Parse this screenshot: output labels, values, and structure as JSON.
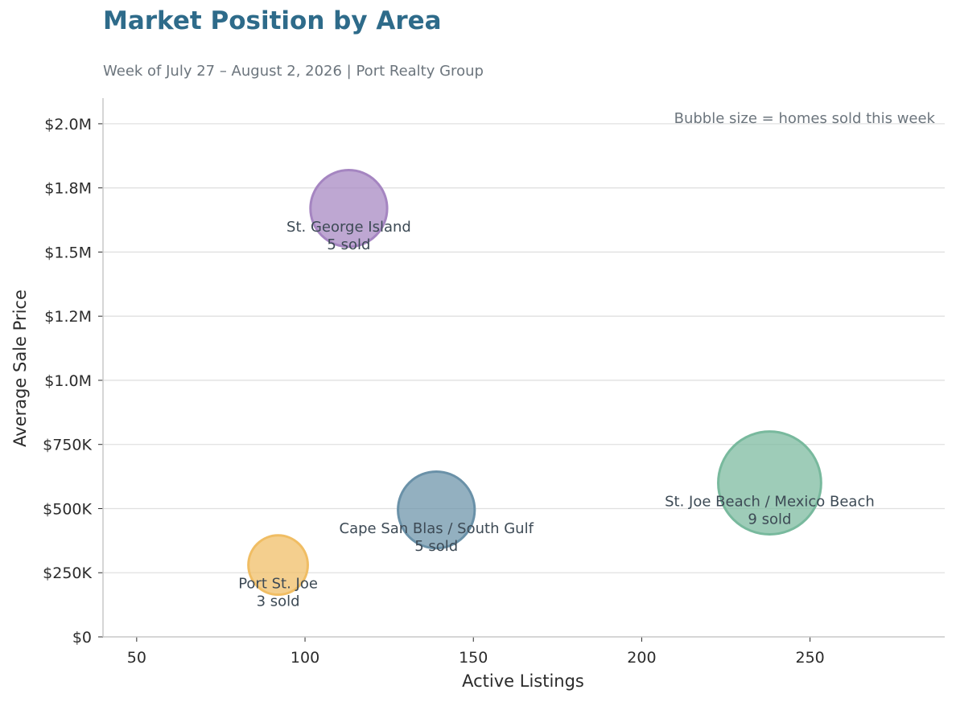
{
  "chart_data": {
    "type": "scatter",
    "title": "Market Position by Area",
    "subtitle": "Week of July 27 – August 2, 2026  |  Port Realty Group",
    "xlabel": "Active Listings",
    "ylabel": "Average Sale Price",
    "xlim": [
      40,
      290
    ],
    "ylim": [
      0,
      2100000
    ],
    "x_ticks": [
      {
        "value": 50,
        "label": "50"
      },
      {
        "value": 100,
        "label": "100"
      },
      {
        "value": 150,
        "label": "150"
      },
      {
        "value": 200,
        "label": "200"
      },
      {
        "value": 250,
        "label": "250"
      }
    ],
    "y_ticks": [
      {
        "value": 0,
        "label": "$0"
      },
      {
        "value": 250000,
        "label": "$250K"
      },
      {
        "value": 500000,
        "label": "$500K"
      },
      {
        "value": 750000,
        "label": "$750K"
      },
      {
        "value": 1000000,
        "label": "$1.0M"
      },
      {
        "value": 1250000,
        "label": "$1.2M"
      },
      {
        "value": 1500000,
        "label": "$1.5M"
      },
      {
        "value": 1750000,
        "label": "$1.8M"
      },
      {
        "value": 2000000,
        "label": "$2.0M"
      }
    ],
    "grid": "horizontal",
    "annotation": "Bubble size = homes sold this week",
    "points": [
      {
        "label": "St. George Island",
        "sold_label": "5 sold",
        "x": 113,
        "y": 1670000,
        "sold": 5,
        "color": "#a585c1"
      },
      {
        "label": "Cape San Blas / South Gulf",
        "sold_label": "5 sold",
        "x": 139,
        "y": 495000,
        "sold": 5,
        "color": "#6a91a8"
      },
      {
        "label": "St. Joe Beach / Mexico Beach",
        "sold_label": "9 sold",
        "x": 238,
        "y": 600000,
        "sold": 9,
        "color": "#78b99d"
      },
      {
        "label": "Port St. Joe",
        "sold_label": "3 sold",
        "x": 92,
        "y": 280000,
        "sold": 3,
        "color": "#f0bd63"
      }
    ]
  }
}
